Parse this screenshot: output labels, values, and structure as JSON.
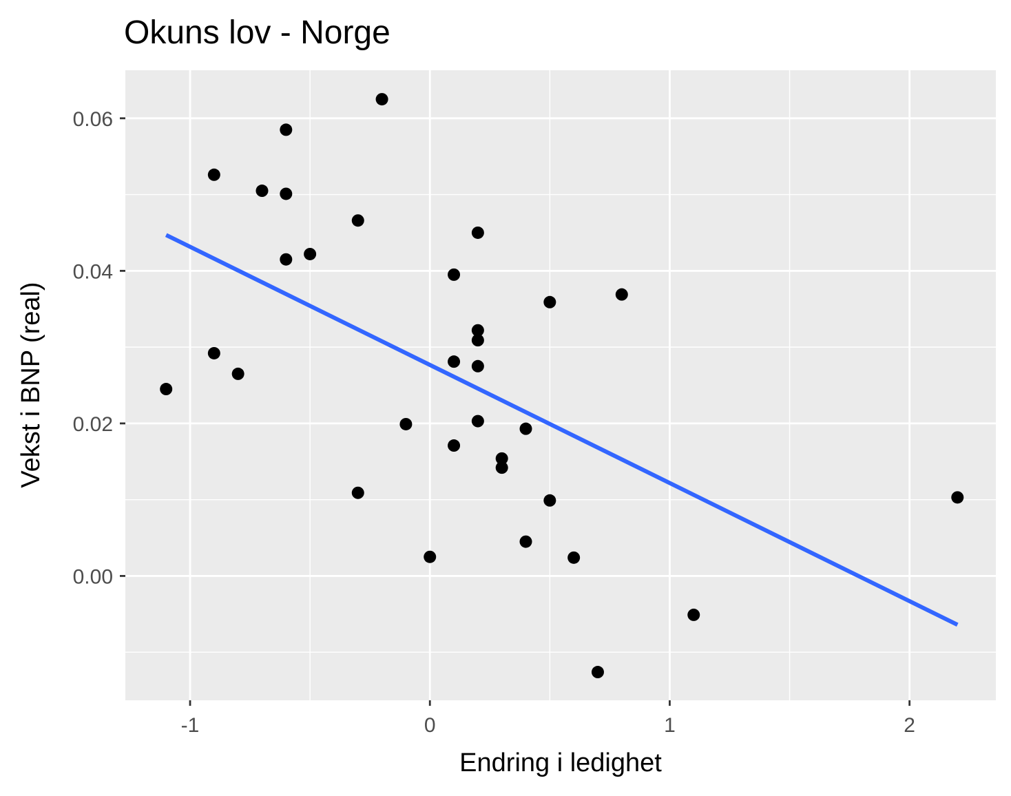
{
  "chart_data": {
    "type": "scatter",
    "title": "Okuns lov - Norge",
    "xlabel": "Endring i ledighet",
    "ylabel": "Vekst i BNP (real)",
    "xlim": [
      -1.27,
      2.36
    ],
    "ylim": [
      -0.0163,
      0.0663
    ],
    "x_ticks": [
      {
        "value": -1,
        "label": "-1"
      },
      {
        "value": 0,
        "label": "0"
      },
      {
        "value": 1,
        "label": "1"
      },
      {
        "value": 2,
        "label": "2"
      }
    ],
    "y_ticks": [
      {
        "value": 0.0,
        "label": "0.00"
      },
      {
        "value": 0.02,
        "label": "0.02"
      },
      {
        "value": 0.04,
        "label": "0.04"
      },
      {
        "value": 0.06,
        "label": "0.06"
      }
    ],
    "grid": true,
    "panel_background": "#ebebeb",
    "point_color": "#000000",
    "points": [
      {
        "x": -1.1,
        "y": 0.0245
      },
      {
        "x": -0.9,
        "y": 0.0526
      },
      {
        "x": -0.9,
        "y": 0.0292
      },
      {
        "x": -0.8,
        "y": 0.0265
      },
      {
        "x": -0.7,
        "y": 0.0505
      },
      {
        "x": -0.6,
        "y": 0.0585
      },
      {
        "x": -0.6,
        "y": 0.0501
      },
      {
        "x": -0.6,
        "y": 0.0415
      },
      {
        "x": -0.5,
        "y": 0.0422
      },
      {
        "x": -0.3,
        "y": 0.0466
      },
      {
        "x": -0.3,
        "y": 0.0109
      },
      {
        "x": -0.2,
        "y": 0.0625
      },
      {
        "x": -0.1,
        "y": 0.0199
      },
      {
        "x": 0.0,
        "y": 0.0025
      },
      {
        "x": 0.1,
        "y": 0.0395
      },
      {
        "x": 0.1,
        "y": 0.0281
      },
      {
        "x": 0.1,
        "y": 0.0171
      },
      {
        "x": 0.2,
        "y": 0.045
      },
      {
        "x": 0.2,
        "y": 0.0322
      },
      {
        "x": 0.2,
        "y": 0.0309
      },
      {
        "x": 0.2,
        "y": 0.0275
      },
      {
        "x": 0.2,
        "y": 0.0203
      },
      {
        "x": 0.3,
        "y": 0.0154
      },
      {
        "x": 0.3,
        "y": 0.0142
      },
      {
        "x": 0.4,
        "y": 0.0193
      },
      {
        "x": 0.4,
        "y": 0.0045
      },
      {
        "x": 0.5,
        "y": 0.0359
      },
      {
        "x": 0.5,
        "y": 0.0099
      },
      {
        "x": 0.6,
        "y": 0.0024
      },
      {
        "x": 0.7,
        "y": -0.0126
      },
      {
        "x": 0.8,
        "y": 0.0369
      },
      {
        "x": 1.1,
        "y": -0.0051
      },
      {
        "x": 2.2,
        "y": 0.0103
      }
    ],
    "regression_line": {
      "color": "#3366ff",
      "x0": -1.1,
      "y0": 0.0447,
      "x1": 2.2,
      "y1": -0.0064
    }
  }
}
